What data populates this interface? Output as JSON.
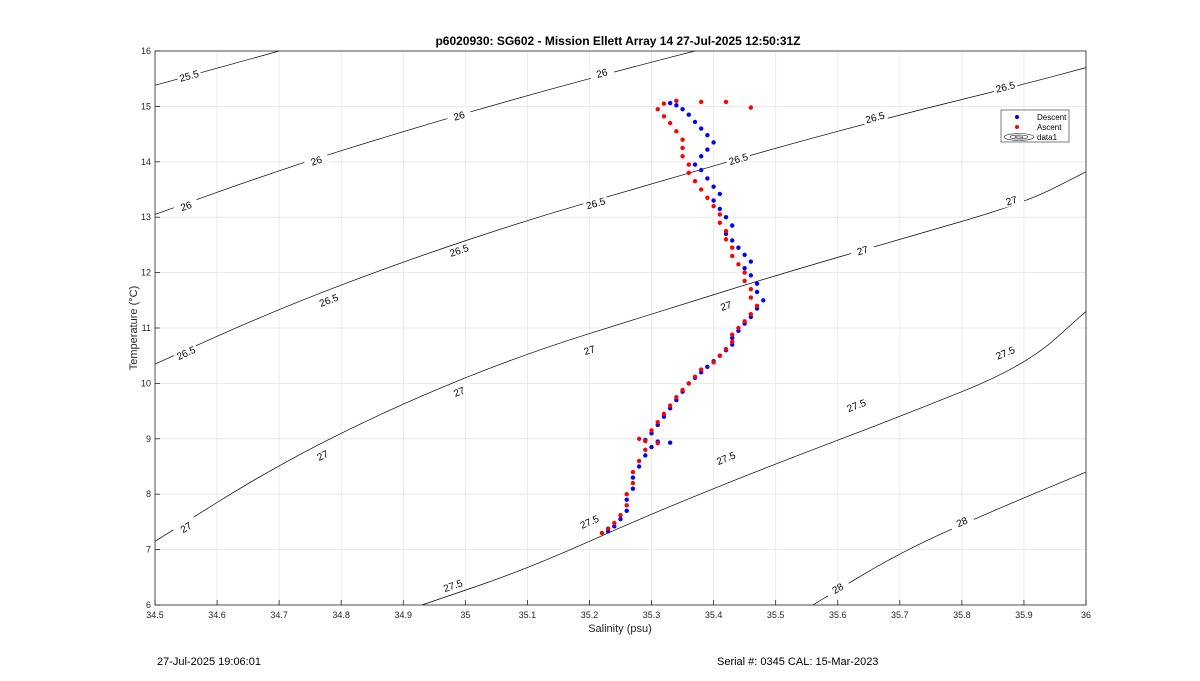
{
  "chart_data": {
    "type": "scatter",
    "title": "p6020930: SG602 - Mission Ellett Array 14 27-Jul-2025 12:50:31Z",
    "xlabel": "Salinity (psu)",
    "ylabel": "Temperature (°C)",
    "xlim": [
      34.5,
      36
    ],
    "ylim": [
      6,
      16
    ],
    "xticks": [
      "34.5",
      "34.6",
      "34.7",
      "34.8",
      "34.9",
      "35",
      "35.1",
      "35.2",
      "35.3",
      "35.4",
      "35.5",
      "35.6",
      "35.7",
      "35.8",
      "35.9",
      "36"
    ],
    "yticks": [
      "6",
      "7",
      "8",
      "9",
      "10",
      "11",
      "12",
      "13",
      "14",
      "15",
      "16"
    ],
    "grid": true,
    "legend_position": "top-right",
    "legend": [
      "Descent",
      "Ascent",
      "data1"
    ],
    "colors": {
      "descent": "#0000ff",
      "ascent": "#ff0000",
      "contour": "#000000",
      "grid": "#e6e6e6"
    },
    "contours": [
      {
        "level": "25.5",
        "points": [
          [
            34.5,
            15.38
          ],
          [
            34.7,
            16.0
          ]
        ],
        "labels": [
          [
            34.555,
            15.55
          ]
        ]
      },
      {
        "level": "26",
        "points": [
          [
            34.5,
            13.05
          ],
          [
            34.7,
            13.85
          ],
          [
            34.9,
            14.55
          ],
          [
            35.1,
            15.2
          ],
          [
            35.3,
            15.8
          ],
          [
            35.37,
            16.0
          ]
        ],
        "labels": [
          [
            34.55,
            13.2
          ],
          [
            34.76,
            14.02
          ],
          [
            34.99,
            14.83
          ],
          [
            35.22,
            15.6
          ]
        ]
      },
      {
        "level": "26.5",
        "points": [
          [
            34.5,
            10.35
          ],
          [
            34.7,
            11.35
          ],
          [
            34.9,
            12.2
          ],
          [
            35.1,
            12.95
          ],
          [
            35.3,
            13.6
          ],
          [
            35.5,
            14.25
          ],
          [
            35.7,
            14.85
          ],
          [
            35.9,
            15.4
          ],
          [
            36.0,
            15.7
          ]
        ],
        "labels": [
          [
            34.55,
            10.55
          ],
          [
            34.78,
            11.5
          ],
          [
            34.99,
            12.4
          ],
          [
            35.21,
            13.25
          ],
          [
            35.44,
            14.05
          ],
          [
            35.66,
            14.8
          ],
          [
            35.87,
            15.35
          ]
        ]
      },
      {
        "level": "27",
        "points": [
          [
            34.5,
            7.15
          ],
          [
            34.7,
            8.55
          ],
          [
            34.9,
            9.65
          ],
          [
            35.1,
            10.55
          ],
          [
            35.3,
            11.25
          ],
          [
            35.5,
            11.95
          ],
          [
            35.7,
            12.6
          ],
          [
            35.9,
            13.25
          ],
          [
            36.0,
            13.82
          ]
        ],
        "labels": [
          [
            34.55,
            7.4
          ],
          [
            34.77,
            8.7
          ],
          [
            34.99,
            9.85
          ],
          [
            35.2,
            10.6
          ],
          [
            35.42,
            11.4
          ],
          [
            35.64,
            12.4
          ],
          [
            35.88,
            13.3
          ]
        ]
      },
      {
        "level": "27.5",
        "points": [
          [
            34.93,
            6.0
          ],
          [
            35.1,
            6.65
          ],
          [
            35.3,
            7.65
          ],
          [
            35.5,
            8.55
          ],
          [
            35.7,
            9.4
          ],
          [
            35.9,
            10.3
          ],
          [
            36.0,
            11.3
          ]
        ],
        "labels": [
          [
            34.98,
            6.35
          ],
          [
            35.2,
            7.5
          ],
          [
            35.42,
            8.65
          ],
          [
            35.63,
            9.6
          ],
          [
            35.87,
            10.55
          ]
        ]
      },
      {
        "level": "28",
        "points": [
          [
            35.56,
            6.0
          ],
          [
            35.7,
            6.95
          ],
          [
            35.85,
            7.7
          ],
          [
            36.0,
            8.4
          ]
        ],
        "labels": [
          [
            35.6,
            6.3
          ],
          [
            35.8,
            7.5
          ]
        ]
      }
    ],
    "series": [
      {
        "name": "Descent",
        "points": [
          [
            35.33,
            15.06
          ],
          [
            35.34,
            15.02
          ],
          [
            35.35,
            14.95
          ],
          [
            35.36,
            14.85
          ],
          [
            35.37,
            14.72
          ],
          [
            35.38,
            14.6
          ],
          [
            35.39,
            14.48
          ],
          [
            35.4,
            14.35
          ],
          [
            35.39,
            14.22
          ],
          [
            35.38,
            14.1
          ],
          [
            35.37,
            13.95
          ],
          [
            35.38,
            13.85
          ],
          [
            35.39,
            13.7
          ],
          [
            35.4,
            13.55
          ],
          [
            35.41,
            13.42
          ],
          [
            35.4,
            13.3
          ],
          [
            35.41,
            13.15
          ],
          [
            35.42,
            13.0
          ],
          [
            35.43,
            12.85
          ],
          [
            35.42,
            12.7
          ],
          [
            35.43,
            12.58
          ],
          [
            35.44,
            12.45
          ],
          [
            35.45,
            12.32
          ],
          [
            35.46,
            12.2
          ],
          [
            35.45,
            12.08
          ],
          [
            35.46,
            11.95
          ],
          [
            35.47,
            11.8
          ],
          [
            35.47,
            11.65
          ],
          [
            35.48,
            11.5
          ],
          [
            35.47,
            11.35
          ],
          [
            35.46,
            11.2
          ],
          [
            35.45,
            11.08
          ],
          [
            35.44,
            10.95
          ],
          [
            35.43,
            10.82
          ],
          [
            35.43,
            10.7
          ],
          [
            35.42,
            10.6
          ],
          [
            35.41,
            10.5
          ],
          [
            35.4,
            10.4
          ],
          [
            35.39,
            10.3
          ],
          [
            35.38,
            10.2
          ],
          [
            35.37,
            10.1
          ],
          [
            35.36,
            10.0
          ],
          [
            35.35,
            9.85
          ],
          [
            35.34,
            9.7
          ],
          [
            35.33,
            9.55
          ],
          [
            35.32,
            9.4
          ],
          [
            35.31,
            9.25
          ],
          [
            35.3,
            9.1
          ],
          [
            35.29,
            8.98
          ],
          [
            35.31,
            8.95
          ],
          [
            35.33,
            8.93
          ],
          [
            35.3,
            8.85
          ],
          [
            35.29,
            8.7
          ],
          [
            35.28,
            8.5
          ],
          [
            35.27,
            8.3
          ],
          [
            35.27,
            8.1
          ],
          [
            35.26,
            7.9
          ],
          [
            35.26,
            7.7
          ],
          [
            35.25,
            7.55
          ],
          [
            35.24,
            7.42
          ],
          [
            35.23,
            7.33
          ]
        ]
      },
      {
        "name": "Ascent",
        "points": [
          [
            35.46,
            14.98
          ],
          [
            35.42,
            15.08
          ],
          [
            35.38,
            15.08
          ],
          [
            35.34,
            15.1
          ],
          [
            35.32,
            15.05
          ],
          [
            35.31,
            14.95
          ],
          [
            35.32,
            14.82
          ],
          [
            35.33,
            14.7
          ],
          [
            35.34,
            14.55
          ],
          [
            35.35,
            14.4
          ],
          [
            35.35,
            14.25
          ],
          [
            35.35,
            14.1
          ],
          [
            35.36,
            13.95
          ],
          [
            35.36,
            13.8
          ],
          [
            35.37,
            13.65
          ],
          [
            35.38,
            13.5
          ],
          [
            35.39,
            13.35
          ],
          [
            35.4,
            13.2
          ],
          [
            35.41,
            13.05
          ],
          [
            35.41,
            12.9
          ],
          [
            35.42,
            12.75
          ],
          [
            35.42,
            12.6
          ],
          [
            35.43,
            12.45
          ],
          [
            35.43,
            12.3
          ],
          [
            35.44,
            12.15
          ],
          [
            35.45,
            12.0
          ],
          [
            35.45,
            11.85
          ],
          [
            35.46,
            11.7
          ],
          [
            35.46,
            11.55
          ],
          [
            35.47,
            11.4
          ],
          [
            35.46,
            11.25
          ],
          [
            35.45,
            11.12
          ],
          [
            35.44,
            11.0
          ],
          [
            35.43,
            10.88
          ],
          [
            35.43,
            10.75
          ],
          [
            35.42,
            10.62
          ],
          [
            35.41,
            10.5
          ],
          [
            35.4,
            10.38
          ],
          [
            35.38,
            10.25
          ],
          [
            35.37,
            10.12
          ],
          [
            35.36,
            10.0
          ],
          [
            35.35,
            9.88
          ],
          [
            35.34,
            9.75
          ],
          [
            35.33,
            9.6
          ],
          [
            35.32,
            9.45
          ],
          [
            35.31,
            9.3
          ],
          [
            35.3,
            9.15
          ],
          [
            35.28,
            9.0
          ],
          [
            35.29,
            8.96
          ],
          [
            35.31,
            8.92
          ],
          [
            35.29,
            8.8
          ],
          [
            35.28,
            8.6
          ],
          [
            35.27,
            8.4
          ],
          [
            35.27,
            8.2
          ],
          [
            35.26,
            8.0
          ],
          [
            35.26,
            7.8
          ],
          [
            35.25,
            7.62
          ],
          [
            35.24,
            7.48
          ],
          [
            35.23,
            7.38
          ],
          [
            35.22,
            7.3
          ]
        ]
      }
    ]
  },
  "footer": {
    "left": "27-Jul-2025 19:06:01",
    "right": "Serial #: 0345  CAL: 15-Mar-2023"
  }
}
